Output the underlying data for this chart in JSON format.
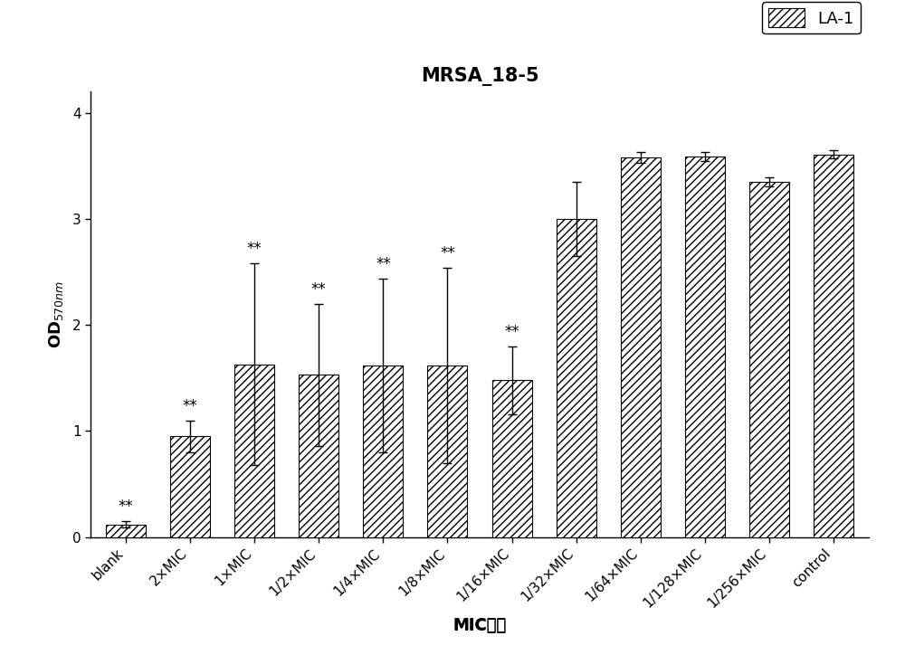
{
  "title": "MRSA_18-5",
  "xlabel": "MIC倍数",
  "categories": [
    "blank",
    "2×MIC",
    "1×MIC",
    "1/2×MIC",
    "1/4×MIC",
    "1/8×MIC",
    "1/16×MIC",
    "1/32×MIC",
    "1/64×MIC",
    "1/128×MIC",
    "1/256×MIC",
    "control"
  ],
  "values": [
    0.12,
    0.95,
    1.63,
    1.53,
    1.62,
    1.62,
    1.48,
    3.0,
    3.58,
    3.59,
    3.35,
    3.61
  ],
  "errors": [
    0.03,
    0.15,
    0.95,
    0.67,
    0.82,
    0.92,
    0.32,
    0.35,
    0.05,
    0.04,
    0.04,
    0.04
  ],
  "significance": [
    "**",
    "**",
    "**",
    "**",
    "**",
    "**",
    "**",
    "",
    "",
    "",
    "",
    ""
  ],
  "ylim": [
    0,
    4.2
  ],
  "yticks": [
    0,
    1,
    2,
    3,
    4
  ],
  "legend_label": "LA-1",
  "hatch_pattern": "////",
  "bar_color": "white",
  "bar_edgecolor": "black",
  "title_fontsize": 15,
  "label_fontsize": 13,
  "tick_fontsize": 11,
  "sig_fontsize": 12
}
